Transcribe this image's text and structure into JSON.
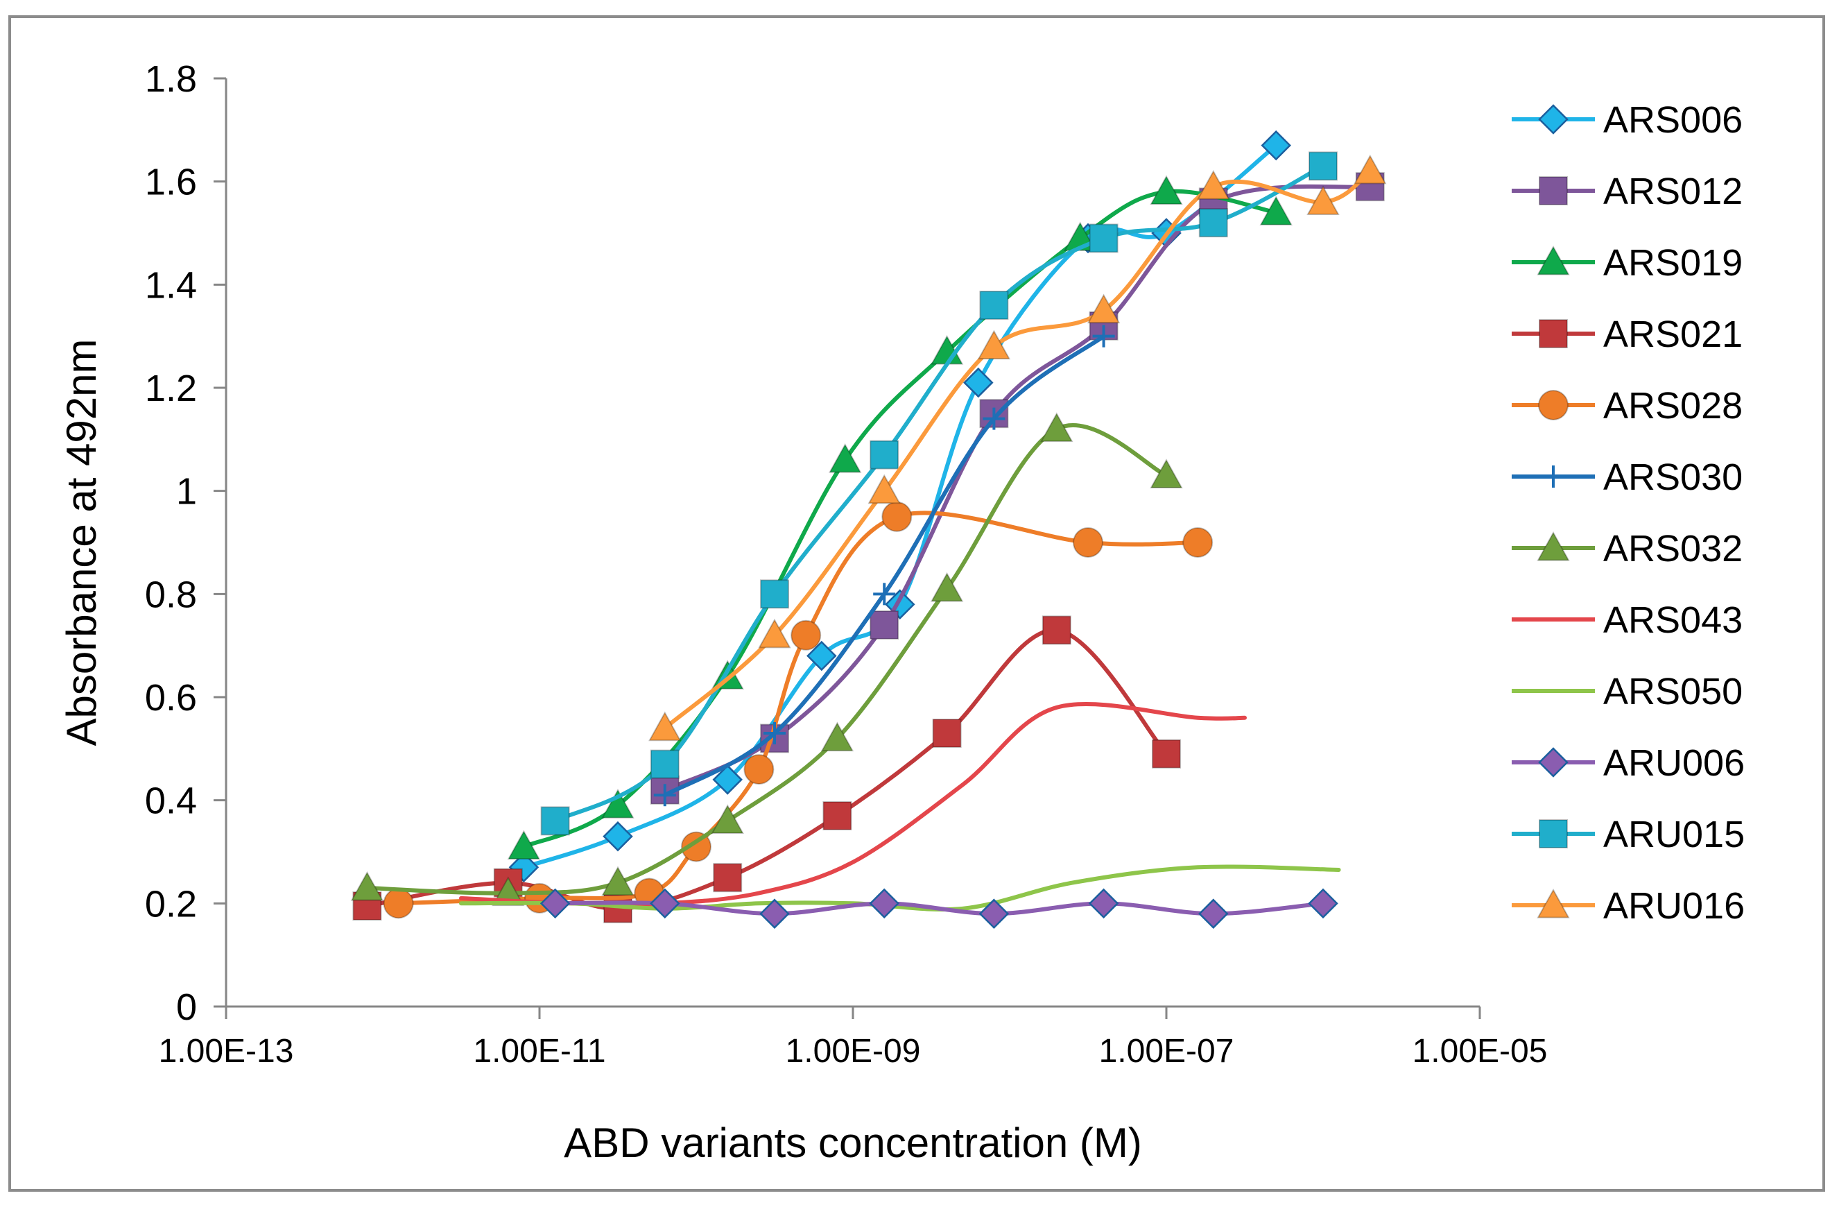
{
  "chart_data": {
    "type": "line",
    "title": "",
    "xlabel": "ABD variants concentration (M)",
    "ylabel": "Absorbance at 492nm",
    "xscale": "log",
    "xlim_log10": [
      -13,
      -5
    ],
    "ylim": [
      0,
      1.8
    ],
    "x_ticks": [
      -13,
      -11,
      -9,
      -7,
      -5
    ],
    "x_tick_labels": [
      "1.00E-13",
      "1.00E-11",
      "1.00E-09",
      "1.00E-07",
      "1.00E-05"
    ],
    "y_ticks": [
      0,
      0.2,
      0.4,
      0.6,
      0.8,
      1,
      1.2,
      1.4,
      1.6,
      1.8
    ],
    "y_tick_labels": [
      "0",
      "0.2",
      "0.4",
      "0.6",
      "0.8",
      "1",
      "1.2",
      "1.4",
      "1.6",
      "1.8"
    ],
    "legend_position": "right",
    "series": [
      {
        "name": "ARS006",
        "color": "#1fb4e8",
        "marker": "diamond",
        "x_log10": [
          -11.1,
          -10.5,
          -9.8,
          -9.2,
          -8.7,
          -8.2,
          -7.5,
          -7.0,
          -6.3
        ],
        "y": [
          0.27,
          0.33,
          0.44,
          0.68,
          0.78,
          1.21,
          1.49,
          1.5,
          1.67
        ]
      },
      {
        "name": "ARS012",
        "color": "#7e569a",
        "marker": "square",
        "x_log10": [
          -10.2,
          -9.5,
          -8.8,
          -8.1,
          -7.4,
          -6.7,
          -5.7
        ],
        "y": [
          0.42,
          0.52,
          0.74,
          1.15,
          1.32,
          1.56,
          1.59
        ]
      },
      {
        "name": "ARS019",
        "color": "#0fa94b",
        "marker": "triangle",
        "x_log10": [
          -11.1,
          -10.5,
          -9.8,
          -9.05,
          -8.4,
          -7.55,
          -7.0,
          -6.3
        ],
        "y": [
          0.31,
          0.39,
          0.64,
          1.06,
          1.27,
          1.49,
          1.58,
          1.54
        ]
      },
      {
        "name": "ARS021",
        "color": "#c0393b",
        "marker": "square",
        "x_log10": [
          -12.1,
          -11.2,
          -10.5,
          -9.8,
          -9.1,
          -8.4,
          -7.7,
          -7.0
        ],
        "y": [
          0.195,
          0.24,
          0.19,
          0.25,
          0.37,
          0.53,
          0.73,
          0.49
        ]
      },
      {
        "name": "ARS028",
        "color": "#ee7d28",
        "marker": "circle",
        "x_log10": [
          -11.9,
          -11.0,
          -10.3,
          -10.0,
          -9.6,
          -9.3,
          -8.72,
          -7.5,
          -6.8
        ],
        "y": [
          0.2,
          0.21,
          0.22,
          0.31,
          0.46,
          0.72,
          0.95,
          0.9,
          0.9
        ]
      },
      {
        "name": "ARS030",
        "color": "#1e6fb6",
        "marker": "plus",
        "x_log10": [
          -10.2,
          -9.5,
          -8.8,
          -8.1,
          -7.4
        ],
        "y": [
          0.41,
          0.53,
          0.8,
          1.14,
          1.3
        ]
      },
      {
        "name": "ARS032",
        "color": "#6e9e3c",
        "marker": "triangle",
        "x_log10": [
          -12.1,
          -11.2,
          -10.5,
          -9.8,
          -9.1,
          -8.4,
          -7.7,
          -7.0
        ],
        "y": [
          0.23,
          0.22,
          0.24,
          0.36,
          0.52,
          0.81,
          1.12,
          1.03
        ]
      },
      {
        "name": "ARS043",
        "color": "#e4464b",
        "marker": "none",
        "x_log10": [
          -11.5,
          -10.8,
          -10.2,
          -9.6,
          -9.0,
          -8.3,
          -7.7,
          -6.8,
          -6.5
        ],
        "y": [
          0.21,
          0.2,
          0.2,
          0.22,
          0.28,
          0.43,
          0.58,
          0.56,
          0.56
        ]
      },
      {
        "name": "ARS050",
        "color": "#8ec54a",
        "marker": "none",
        "x_log10": [
          -11.5,
          -10.8,
          -10.2,
          -9.6,
          -9.0,
          -8.3,
          -7.6,
          -6.8,
          -5.9
        ],
        "y": [
          0.2,
          0.2,
          0.19,
          0.2,
          0.2,
          0.19,
          0.24,
          0.27,
          0.265
        ]
      },
      {
        "name": "ARU006",
        "color": "#8a5db0",
        "marker": "diamond",
        "x_log10": [
          -10.9,
          -10.2,
          -9.5,
          -8.8,
          -8.1,
          -7.4,
          -6.7,
          -6.0
        ],
        "y": [
          0.2,
          0.2,
          0.18,
          0.2,
          0.18,
          0.2,
          0.18,
          0.2
        ]
      },
      {
        "name": "ARU015",
        "color": "#20aecb",
        "marker": "square",
        "x_log10": [
          -10.9,
          -10.2,
          -9.5,
          -8.8,
          -8.1,
          -7.4,
          -6.7,
          -6.0
        ],
        "y": [
          0.36,
          0.47,
          0.8,
          1.07,
          1.36,
          1.49,
          1.52,
          1.63
        ]
      },
      {
        "name": "ARU016",
        "color": "#fb9a3c",
        "marker": "triangle",
        "x_log10": [
          -10.2,
          -9.5,
          -8.8,
          -8.1,
          -7.4,
          -6.7,
          -6.0,
          -5.7
        ],
        "y": [
          0.54,
          0.72,
          1.0,
          1.28,
          1.35,
          1.59,
          1.56,
          1.62
        ]
      }
    ]
  }
}
